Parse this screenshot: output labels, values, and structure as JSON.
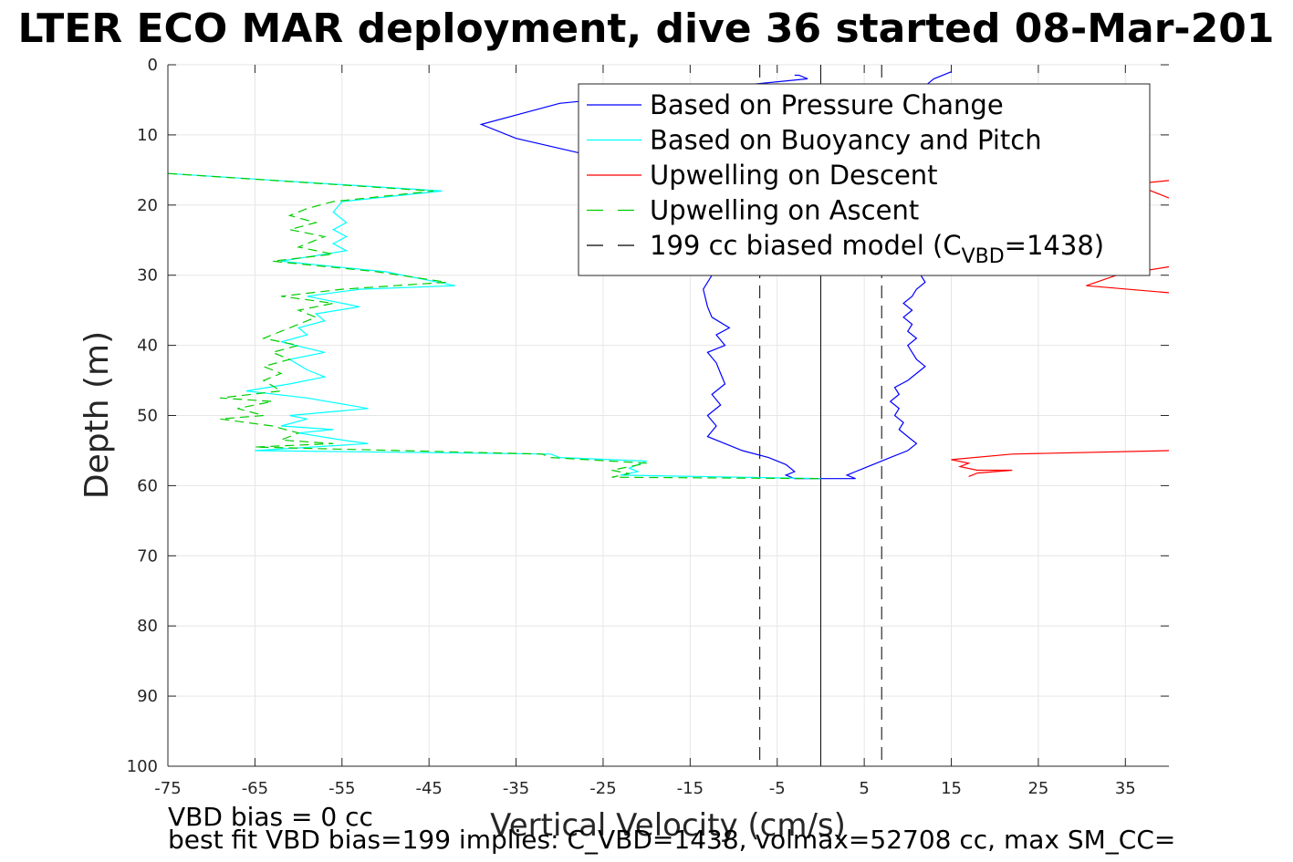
{
  "chart_data": {
    "type": "line",
    "title": "LTER ECO MAR deployment, dive 36 started 08-Mar-201",
    "xlabel": "Vertical Velocity (cm/s)",
    "ylabel": "Depth (m)",
    "xlim": [
      -75,
      40
    ],
    "ylim": [
      100,
      0
    ],
    "y_reversed": true,
    "grid": true,
    "x_ticks": [
      -75,
      -65,
      -55,
      -45,
      -35,
      -25,
      -15,
      -5,
      5,
      15,
      25,
      35
    ],
    "y_ticks": [
      0,
      10,
      20,
      30,
      40,
      50,
      60,
      70,
      80,
      90,
      100
    ],
    "legend_position": "top-right",
    "legend": [
      {
        "label": "Based on Pressure Change",
        "color": "#0000ff",
        "style": "solid"
      },
      {
        "label": "Based on Buoyancy and Pitch",
        "color": "#00ffff",
        "style": "solid"
      },
      {
        "label": "Upwelling on Descent",
        "color": "#ff0000",
        "style": "solid"
      },
      {
        "label": "Upwelling on Ascent",
        "color": "#00cc00",
        "style": "dashed"
      },
      {
        "label_prefix": "199 cc biased model (C",
        "label_sub": "VBD",
        "label_suffix": "=1438)",
        "color": "#000000",
        "style": "dashed"
      }
    ],
    "annotations": [
      "VBD bias = 0 cc",
      "best fit VBD bias=199 implies: C_VBD=1438, volmax=52708 cc, max SM_CC="
    ],
    "series": [
      {
        "name": "Based on Pressure Change",
        "color": "#0000ff",
        "style": "solid",
        "points": [
          [
            -3,
            1.5
          ],
          [
            -2.5,
            1.5
          ],
          [
            -1.5,
            2
          ],
          [
            -30,
            5.5
          ],
          [
            -39,
            8.5
          ],
          [
            -35,
            10.5
          ],
          [
            -28,
            12.5
          ],
          [
            -22,
            14
          ],
          [
            -16,
            17
          ],
          [
            -13,
            19.5
          ],
          [
            -12,
            22
          ],
          [
            -12.5,
            25
          ],
          [
            -13,
            28
          ],
          [
            -12.5,
            30
          ],
          [
            -13.5,
            32
          ],
          [
            -13,
            34.5
          ],
          [
            -12.5,
            36
          ],
          [
            -10.5,
            37.5
          ],
          [
            -12,
            38.5
          ],
          [
            -11,
            40
          ],
          [
            -13,
            41
          ],
          [
            -12,
            42.5
          ],
          [
            -11.5,
            44
          ],
          [
            -11,
            45.5
          ],
          [
            -12.5,
            47
          ],
          [
            -11.5,
            48.5
          ],
          [
            -13,
            50
          ],
          [
            -12,
            51.5
          ],
          [
            -13,
            53
          ],
          [
            -11,
            54
          ],
          [
            -9,
            55
          ],
          [
            -6,
            56
          ],
          [
            -4,
            57
          ],
          [
            -3,
            58
          ],
          [
            -4,
            58.5
          ],
          [
            -3,
            59
          ],
          [
            0,
            59
          ]
        ]
      },
      {
        "name": "Based on Pressure Change (ascent)",
        "color": "#0000ff",
        "style": "solid",
        "points": [
          [
            0,
            59
          ],
          [
            4,
            59
          ],
          [
            3,
            58.5
          ],
          [
            4,
            58
          ],
          [
            5,
            57.5
          ],
          [
            6,
            57
          ],
          [
            8,
            56
          ],
          [
            10,
            55
          ],
          [
            11,
            54
          ],
          [
            10,
            53
          ],
          [
            9,
            52
          ],
          [
            9.5,
            51
          ],
          [
            8.5,
            50
          ],
          [
            9,
            49
          ],
          [
            8,
            48
          ],
          [
            9,
            47
          ],
          [
            8.5,
            46
          ],
          [
            10,
            45
          ],
          [
            11,
            44
          ],
          [
            12,
            43
          ],
          [
            11,
            42
          ],
          [
            10.5,
            41
          ],
          [
            10,
            40
          ],
          [
            11,
            39
          ],
          [
            10,
            38
          ],
          [
            10.5,
            37
          ],
          [
            9.5,
            36
          ],
          [
            10.5,
            35
          ],
          [
            9.5,
            34
          ],
          [
            10.5,
            33
          ],
          [
            11,
            32
          ],
          [
            12,
            31
          ],
          [
            11.5,
            30
          ],
          [
            12,
            29
          ],
          [
            11,
            28
          ],
          [
            12,
            27
          ],
          [
            11,
            26
          ],
          [
            12,
            25
          ],
          [
            11.5,
            24
          ],
          [
            12,
            23
          ],
          [
            11,
            22
          ],
          [
            12,
            21
          ],
          [
            11,
            20
          ],
          [
            10,
            19
          ],
          [
            9,
            18
          ],
          [
            8,
            17
          ],
          [
            7,
            16
          ],
          [
            8,
            15
          ],
          [
            9,
            14
          ],
          [
            10,
            13
          ],
          [
            11,
            12
          ],
          [
            12,
            11
          ],
          [
            11,
            10
          ],
          [
            10,
            9
          ],
          [
            11,
            8
          ],
          [
            12,
            7
          ],
          [
            11,
            6
          ],
          [
            10,
            5
          ],
          [
            12,
            3
          ],
          [
            13,
            2
          ],
          [
            15,
            1
          ]
        ]
      },
      {
        "name": "Based on Buoyancy and Pitch",
        "color": "#00ffff",
        "style": "solid",
        "points": [
          [
            -75,
            15.5
          ],
          [
            -43.5,
            18
          ],
          [
            -55,
            19.5
          ],
          [
            -56,
            21
          ],
          [
            -54.5,
            22.5
          ],
          [
            -56,
            23.5
          ],
          [
            -54.5,
            24.5
          ],
          [
            -56,
            25.5
          ],
          [
            -54.5,
            26.5
          ],
          [
            -62,
            28
          ],
          [
            -50,
            29.5
          ],
          [
            -42,
            31.5
          ],
          [
            -53,
            32
          ],
          [
            -59,
            33
          ],
          [
            -53,
            34.5
          ],
          [
            -58,
            35.5
          ],
          [
            -57,
            36.5
          ],
          [
            -60,
            37.5
          ],
          [
            -59,
            38.5
          ],
          [
            -62,
            39.5
          ],
          [
            -57,
            41
          ],
          [
            -61,
            42
          ],
          [
            -59,
            43.5
          ],
          [
            -57,
            44.5
          ],
          [
            -61,
            45.5
          ],
          [
            -66,
            46.5
          ],
          [
            -59,
            47.5
          ],
          [
            -52,
            49
          ],
          [
            -61,
            50
          ],
          [
            -59,
            50.5
          ],
          [
            -62,
            51.5
          ],
          [
            -56,
            52
          ],
          [
            -60,
            52.5
          ],
          [
            -55,
            53.5
          ],
          [
            -52,
            54
          ],
          [
            -65,
            55
          ],
          [
            -31,
            55.5
          ],
          [
            -30,
            56
          ],
          [
            -20,
            56.5
          ],
          [
            -22,
            57.5
          ],
          [
            -21,
            58
          ],
          [
            -23,
            58.5
          ],
          [
            0,
            59
          ]
        ]
      },
      {
        "name": "Upwelling on Ascent",
        "color": "#00cc00",
        "style": "dashed",
        "points": [
          [
            -75,
            15.5
          ],
          [
            -44.5,
            18
          ],
          [
            -56,
            19.5
          ],
          [
            -59,
            20.5
          ],
          [
            -61,
            21.5
          ],
          [
            -58,
            22.5
          ],
          [
            -61,
            23.5
          ],
          [
            -57,
            24.5
          ],
          [
            -60,
            26
          ],
          [
            -56,
            27
          ],
          [
            -63,
            28
          ],
          [
            -51,
            29.5
          ],
          [
            -43,
            31
          ],
          [
            -55,
            32
          ],
          [
            -62,
            33
          ],
          [
            -56,
            34
          ],
          [
            -60,
            35
          ],
          [
            -58,
            36
          ],
          [
            -62,
            38
          ],
          [
            -64,
            39
          ],
          [
            -60,
            40
          ],
          [
            -63,
            41
          ],
          [
            -61,
            42
          ],
          [
            -64,
            43
          ],
          [
            -62,
            44
          ],
          [
            -64,
            45
          ],
          [
            -62,
            46.5
          ],
          [
            -69,
            47.5
          ],
          [
            -63,
            48
          ],
          [
            -67,
            49
          ],
          [
            -64,
            50
          ],
          [
            -69,
            50.5
          ],
          [
            -63,
            51.5
          ],
          [
            -60,
            52.5
          ],
          [
            -62,
            53.5
          ],
          [
            -56,
            54
          ],
          [
            -65,
            54.5
          ],
          [
            -32,
            55.5
          ],
          [
            -31,
            56
          ],
          [
            -20,
            56.8
          ],
          [
            -22,
            57.3
          ],
          [
            -24,
            57.8
          ],
          [
            -22,
            58.3
          ],
          [
            -24,
            58.8
          ],
          [
            0,
            59
          ]
        ]
      },
      {
        "name": "Upwelling on Descent (upper)",
        "color": "#ff0000",
        "style": "solid",
        "points": [
          [
            40,
            16.5
          ],
          [
            36,
            17
          ],
          [
            38,
            18
          ],
          [
            40,
            19
          ]
        ]
      },
      {
        "name": "Upwelling on Descent (middle)",
        "color": "#ff0000",
        "style": "solid",
        "points": [
          [
            40,
            28.8
          ],
          [
            34,
            30
          ],
          [
            30.5,
            31.5
          ],
          [
            40,
            32.5
          ]
        ]
      },
      {
        "name": "Upwelling on Descent (lower)",
        "color": "#ff0000",
        "style": "solid",
        "points": [
          [
            40,
            55
          ],
          [
            22,
            55.5
          ],
          [
            15,
            56.3
          ],
          [
            17,
            56.8
          ],
          [
            16,
            57.3
          ],
          [
            18,
            57.8
          ],
          [
            22,
            57.8
          ],
          [
            18,
            58.2
          ],
          [
            17,
            58.7
          ]
        ]
      }
    ],
    "reference_lines": [
      {
        "x": 0,
        "style": "solid",
        "color": "#000000"
      },
      {
        "x": -7,
        "style": "dashed",
        "color": "#000000"
      },
      {
        "x": 7,
        "style": "dashed",
        "color": "#000000"
      }
    ]
  }
}
